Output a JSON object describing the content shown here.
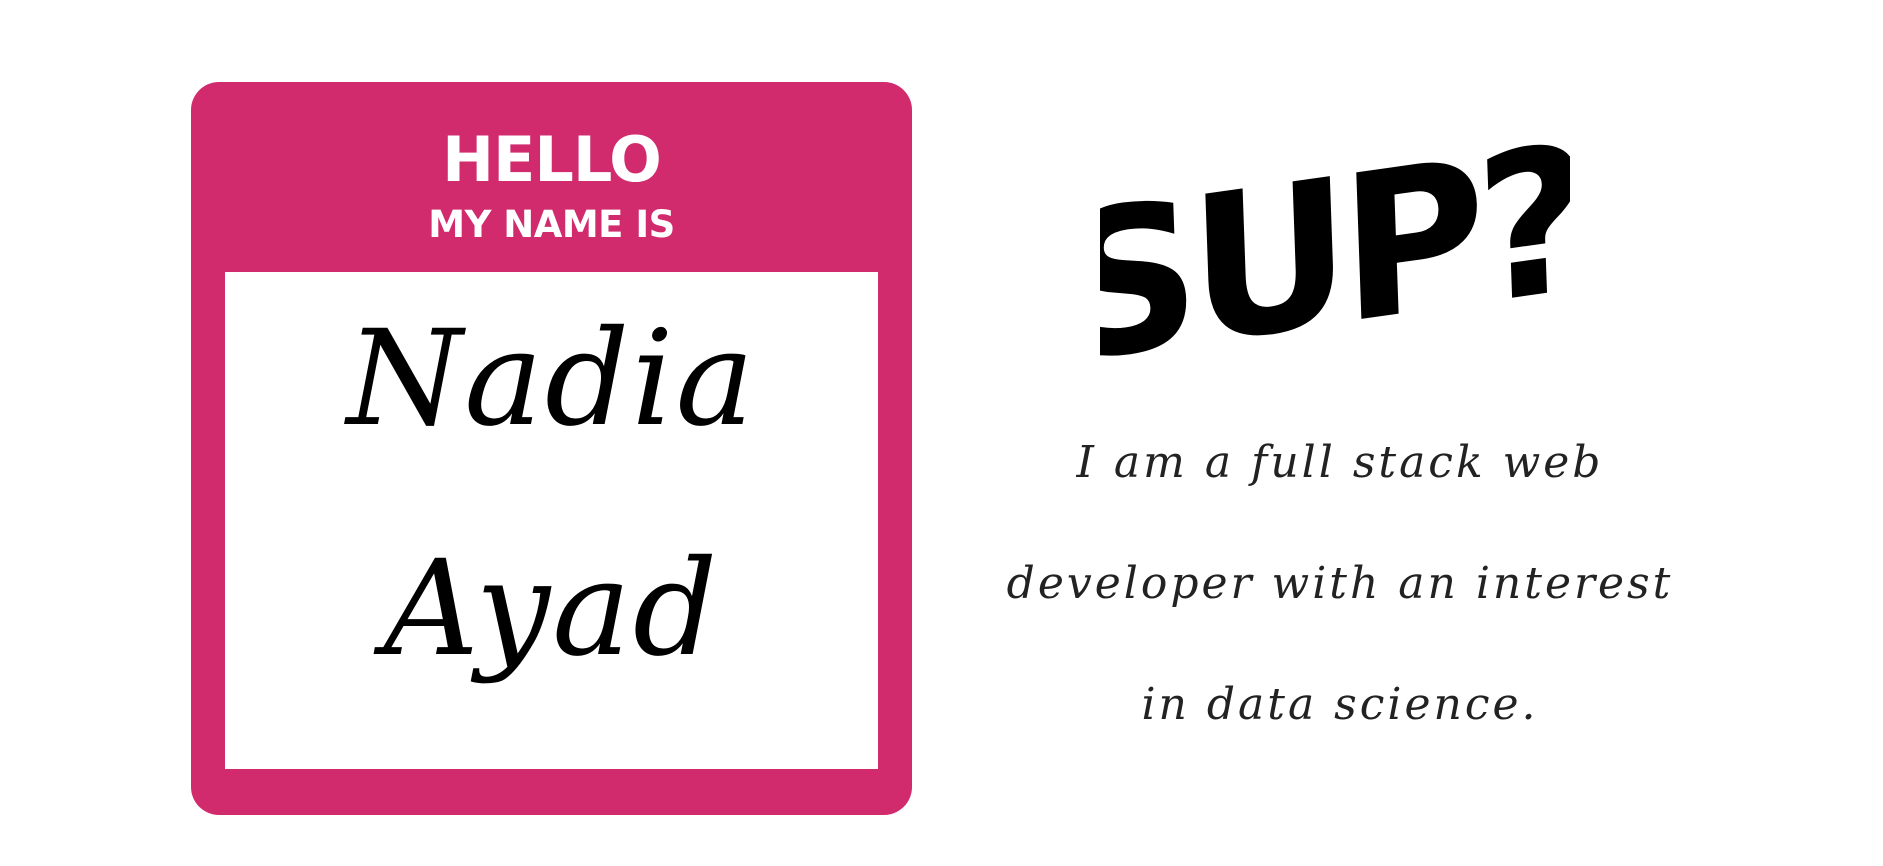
{
  "badge": {
    "hello": "HELLO",
    "subtitle": "MY NAME IS",
    "first_name": "Nadia",
    "last_name": "Ayad",
    "color": "#d12b6e"
  },
  "graffiti": {
    "text": "SUP?"
  },
  "bio": {
    "lines": [
      "I am a full stack web",
      "developer with an interest",
      "in data science."
    ]
  }
}
